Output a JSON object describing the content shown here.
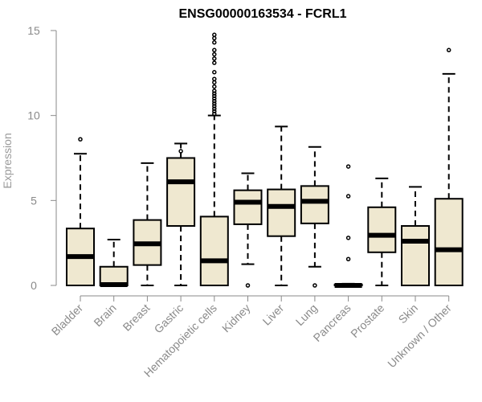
{
  "chart_data": {
    "type": "box",
    "title": "ENSG00000163534 - FCRL1",
    "xlabel": "",
    "ylabel": "Expression",
    "ylim": [
      0,
      15
    ],
    "yticks": [
      0,
      5,
      10,
      15
    ],
    "grid": false,
    "legend": "none",
    "colors": {
      "box_fill": "#efe8d0",
      "stroke": "#000000",
      "axis": "#8a8a8a"
    },
    "categories": [
      "Bladder",
      "Brain",
      "Breast",
      "Gastric",
      "Hematopoietic cells",
      "Kidney",
      "Liver",
      "Lung",
      "Pancreas",
      "Prostate",
      "Skin",
      "Unknown / Other"
    ],
    "boxes": [
      {
        "category": "Bladder",
        "min": 0,
        "q1": 0,
        "median": 1.7,
        "q3": 3.35,
        "max": 7.75,
        "outliers": [
          8.6
        ]
      },
      {
        "category": "Brain",
        "min": 0,
        "q1": 0,
        "median": 0.05,
        "q3": 1.1,
        "max": 2.7,
        "outliers": []
      },
      {
        "category": "Breast",
        "min": 0,
        "q1": 1.2,
        "median": 2.45,
        "q3": 3.85,
        "max": 7.2,
        "outliers": []
      },
      {
        "category": "Gastric",
        "min": 0,
        "q1": 3.5,
        "median": 6.1,
        "q3": 7.5,
        "max": 8.35,
        "outliers": [
          7.9
        ]
      },
      {
        "category": "Hematopoietic cells",
        "min": 0,
        "q1": 0,
        "median": 1.45,
        "q3": 4.05,
        "max": 10,
        "outliers": [
          10.1,
          10.25,
          10.4,
          10.55,
          10.7,
          10.85,
          11.0,
          11.15,
          11.3,
          11.45,
          11.7,
          11.95,
          12.15,
          12.55,
          13.1,
          13.35,
          13.6,
          13.85,
          14.3,
          14.55,
          14.75
        ]
      },
      {
        "category": "Kidney",
        "min": 1.25,
        "q1": 3.6,
        "median": 4.9,
        "q3": 5.6,
        "max": 6.6,
        "outliers": [
          0
        ]
      },
      {
        "category": "Liver",
        "min": 0,
        "q1": 2.9,
        "median": 4.65,
        "q3": 5.65,
        "max": 9.35,
        "outliers": []
      },
      {
        "category": "Lung",
        "min": 1.1,
        "q1": 3.65,
        "median": 4.95,
        "q3": 5.85,
        "max": 8.15,
        "outliers": [
          0
        ]
      },
      {
        "category": "Pancreas",
        "min": 0,
        "q1": 0,
        "median": 0,
        "q3": 0.05,
        "max": 0.1,
        "outliers": [
          1.55,
          2.8,
          5.25,
          7.0
        ]
      },
      {
        "category": "Prostate",
        "min": 0,
        "q1": 1.95,
        "median": 2.95,
        "q3": 4.6,
        "max": 6.3,
        "outliers": []
      },
      {
        "category": "Skin",
        "min": 0,
        "q1": 0,
        "median": 2.6,
        "q3": 3.5,
        "max": 5.8,
        "outliers": []
      },
      {
        "category": "Unknown / Other",
        "min": 0,
        "q1": 0,
        "median": 2.1,
        "q3": 5.1,
        "max": 12.45,
        "outliers": [
          13.85
        ]
      }
    ]
  }
}
